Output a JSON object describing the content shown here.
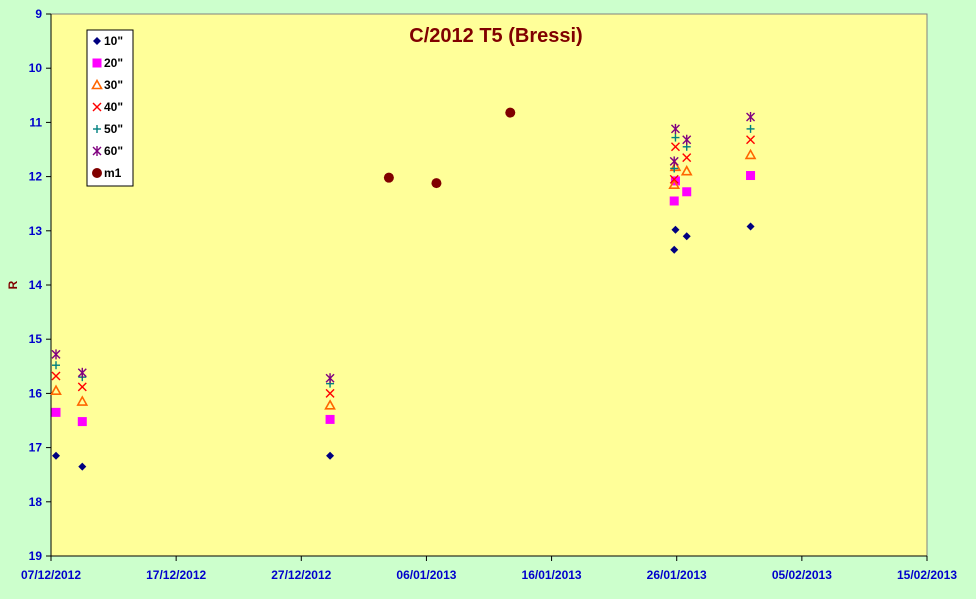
{
  "chart_data": {
    "type": "scatter",
    "title": "C/2012 T5 (Bressi)",
    "xlabel": "",
    "ylabel": "R",
    "x_ticks": [
      "07/12/2012",
      "17/12/2012",
      "27/12/2012",
      "06/01/2013",
      "16/01/2013",
      "26/01/2013",
      "05/02/2013",
      "15/02/2013"
    ],
    "y_ticks": [
      "9",
      "10",
      "11",
      "12",
      "13",
      "14",
      "15",
      "16",
      "17",
      "18",
      "19"
    ],
    "xlim_days": [
      0,
      70
    ],
    "ylim": [
      9,
      19
    ],
    "y_inverted": true,
    "grid": false,
    "legend_position": "top-left",
    "plot_background": "#ffff99",
    "series": [
      {
        "name": "10\"",
        "marker": "diamond",
        "color": "#000080",
        "points": [
          [
            0.4,
            17.15
          ],
          [
            2.5,
            17.35
          ],
          [
            22.3,
            17.15
          ],
          [
            49.8,
            13.35
          ],
          [
            49.9,
            12.98
          ],
          [
            50.8,
            13.1
          ],
          [
            55.9,
            12.92
          ]
        ]
      },
      {
        "name": "20\"",
        "marker": "square",
        "color": "#ff00ff",
        "points": [
          [
            0.4,
            16.35
          ],
          [
            2.5,
            16.52
          ],
          [
            22.3,
            16.48
          ],
          [
            49.8,
            12.45
          ],
          [
            49.9,
            12.08
          ],
          [
            50.8,
            12.28
          ],
          [
            55.9,
            11.98
          ]
        ]
      },
      {
        "name": "30\"",
        "marker": "triangle",
        "color": "#ff6600",
        "points": [
          [
            0.4,
            15.95
          ],
          [
            2.5,
            16.15
          ],
          [
            22.3,
            16.22
          ],
          [
            49.8,
            12.15
          ],
          [
            49.9,
            11.82
          ],
          [
            50.8,
            11.9
          ],
          [
            55.9,
            11.6
          ]
        ]
      },
      {
        "name": "40\"",
        "marker": "x",
        "color": "#ff0000",
        "points": [
          [
            0.4,
            15.68
          ],
          [
            2.5,
            15.88
          ],
          [
            22.3,
            16.0
          ],
          [
            49.8,
            12.05
          ],
          [
            49.9,
            11.45
          ],
          [
            50.8,
            11.65
          ],
          [
            55.9,
            11.32
          ]
        ]
      },
      {
        "name": "50\"",
        "marker": "plus",
        "color": "#008080",
        "points": [
          [
            0.4,
            15.48
          ],
          [
            2.5,
            15.7
          ],
          [
            22.3,
            15.82
          ],
          [
            49.8,
            11.85
          ],
          [
            49.9,
            11.28
          ],
          [
            50.8,
            11.45
          ],
          [
            55.9,
            11.12
          ]
        ]
      },
      {
        "name": "60\"",
        "marker": "star",
        "color": "#800080",
        "points": [
          [
            0.4,
            15.28
          ],
          [
            2.5,
            15.62
          ],
          [
            22.3,
            15.72
          ],
          [
            49.8,
            11.72
          ],
          [
            49.9,
            11.12
          ],
          [
            50.8,
            11.32
          ],
          [
            55.9,
            10.9
          ]
        ]
      },
      {
        "name": "m1",
        "marker": "circle",
        "color": "#800000",
        "points": [
          [
            27.0,
            12.02
          ],
          [
            30.8,
            12.12
          ],
          [
            36.7,
            10.82
          ]
        ]
      }
    ]
  }
}
